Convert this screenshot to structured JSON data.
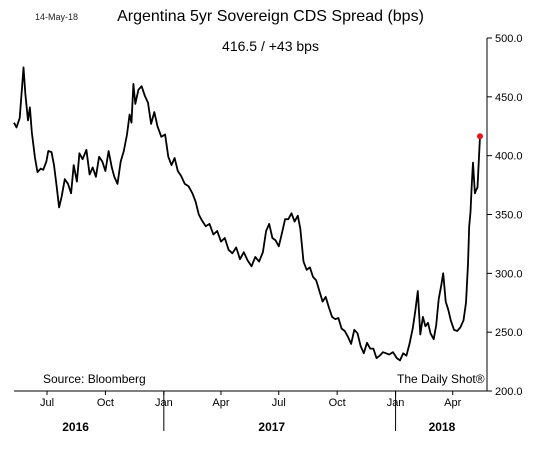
{
  "header": {
    "date": "14-May-18",
    "title": "Argentina 5yr Sovereign CDS Spread (bps)",
    "subtitle": "416.5  /  +43 bps"
  },
  "footer": {
    "source": "Source: Bloomberg",
    "credit": "The Daily Shot®"
  },
  "colors": {
    "line": "#000000",
    "last_point": "#e8161b"
  },
  "chart_data": {
    "type": "line",
    "title": "Argentina 5yr Sovereign CDS Spread (bps)",
    "subtitle": "416.5  /  +43 bps",
    "xlabel": "",
    "ylabel": "",
    "ylim": [
      200,
      500
    ],
    "xlim": [
      "2016-05-10",
      "2018-05-25"
    ],
    "yticks": [
      200,
      250,
      300,
      350,
      400,
      450,
      500
    ],
    "ytick_labels": [
      "200.0",
      "250.0",
      "300.0",
      "350.0",
      "400.0",
      "450.0",
      "500.0"
    ],
    "month_ticks": [
      {
        "label": "Jul",
        "date": "2016-07-01"
      },
      {
        "label": "Oct",
        "date": "2016-10-01"
      },
      {
        "label": "Jan",
        "date": "2017-01-01"
      },
      {
        "label": "Apr",
        "date": "2017-04-01"
      },
      {
        "label": "Jul",
        "date": "2017-07-01"
      },
      {
        "label": "Oct",
        "date": "2017-10-01"
      },
      {
        "label": "Jan",
        "date": "2018-01-01"
      },
      {
        "label": "Apr",
        "date": "2018-04-01"
      }
    ],
    "year_labels": [
      {
        "label": "2016",
        "date": "2016-08-15"
      },
      {
        "label": "2017",
        "date": "2017-06-20"
      },
      {
        "label": "2018",
        "date": "2018-03-15"
      }
    ],
    "year_dividers": [
      "2017-01-01",
      "2018-01-01"
    ],
    "grid": false,
    "legend": "none",
    "series": [
      {
        "points": [
          [
            "2016-05-10",
            428
          ],
          [
            "2016-05-14",
            424
          ],
          [
            "2016-05-19",
            432
          ],
          [
            "2016-05-23",
            461
          ],
          [
            "2016-05-25",
            475
          ],
          [
            "2016-05-28",
            452
          ],
          [
            "2016-06-01",
            430
          ],
          [
            "2016-06-04",
            441
          ],
          [
            "2016-06-07",
            420
          ],
          [
            "2016-06-12",
            398
          ],
          [
            "2016-06-16",
            386
          ],
          [
            "2016-06-21",
            389
          ],
          [
            "2016-06-25",
            388
          ],
          [
            "2016-06-30",
            395
          ],
          [
            "2016-07-03",
            404
          ],
          [
            "2016-07-08",
            403
          ],
          [
            "2016-07-12",
            392
          ],
          [
            "2016-07-16",
            375
          ],
          [
            "2016-07-20",
            356
          ],
          [
            "2016-07-24",
            365
          ],
          [
            "2016-07-29",
            380
          ],
          [
            "2016-08-03",
            376
          ],
          [
            "2016-08-08",
            368
          ],
          [
            "2016-08-12",
            392
          ],
          [
            "2016-08-17",
            378
          ],
          [
            "2016-08-21",
            402
          ],
          [
            "2016-08-26",
            397
          ],
          [
            "2016-09-01",
            405
          ],
          [
            "2016-09-06",
            384
          ],
          [
            "2016-09-11",
            390
          ],
          [
            "2016-09-16",
            382
          ],
          [
            "2016-09-21",
            399
          ],
          [
            "2016-09-26",
            395
          ],
          [
            "2016-10-01",
            387
          ],
          [
            "2016-10-06",
            404
          ],
          [
            "2016-10-11",
            390
          ],
          [
            "2016-10-15",
            382
          ],
          [
            "2016-10-20",
            376
          ],
          [
            "2016-10-25",
            395
          ],
          [
            "2016-10-30",
            404
          ],
          [
            "2016-11-04",
            418
          ],
          [
            "2016-11-08",
            435
          ],
          [
            "2016-11-11",
            428
          ],
          [
            "2016-11-14",
            461
          ],
          [
            "2016-11-17",
            444
          ],
          [
            "2016-11-22",
            456
          ],
          [
            "2016-11-27",
            459
          ],
          [
            "2016-12-02",
            451
          ],
          [
            "2016-12-07",
            445
          ],
          [
            "2016-12-12",
            427
          ],
          [
            "2016-12-17",
            437
          ],
          [
            "2016-12-22",
            425
          ],
          [
            "2016-12-28",
            416
          ],
          [
            "2017-01-03",
            418
          ],
          [
            "2017-01-08",
            399
          ],
          [
            "2017-01-13",
            392
          ],
          [
            "2017-01-18",
            398
          ],
          [
            "2017-01-23",
            387
          ],
          [
            "2017-01-28",
            383
          ],
          [
            "2017-02-03",
            376
          ],
          [
            "2017-02-09",
            374
          ],
          [
            "2017-02-15",
            368
          ],
          [
            "2017-02-20",
            361
          ],
          [
            "2017-02-25",
            350
          ],
          [
            "2017-03-02",
            345
          ],
          [
            "2017-03-08",
            340
          ],
          [
            "2017-03-14",
            342
          ],
          [
            "2017-03-20",
            333
          ],
          [
            "2017-03-26",
            336
          ],
          [
            "2017-04-01",
            327
          ],
          [
            "2017-04-07",
            330
          ],
          [
            "2017-04-13",
            320
          ],
          [
            "2017-04-19",
            317
          ],
          [
            "2017-04-25",
            322
          ],
          [
            "2017-05-01",
            312
          ],
          [
            "2017-05-07",
            318
          ],
          [
            "2017-05-13",
            311
          ],
          [
            "2017-05-19",
            306
          ],
          [
            "2017-05-25",
            314
          ],
          [
            "2017-05-31",
            310
          ],
          [
            "2017-06-06",
            318
          ],
          [
            "2017-06-11",
            336
          ],
          [
            "2017-06-16",
            342
          ],
          [
            "2017-06-21",
            330
          ],
          [
            "2017-06-26",
            328
          ],
          [
            "2017-07-01",
            323
          ],
          [
            "2017-07-06",
            334
          ],
          [
            "2017-07-11",
            346
          ],
          [
            "2017-07-16",
            346
          ],
          [
            "2017-07-21",
            351
          ],
          [
            "2017-07-26",
            344
          ],
          [
            "2017-07-31",
            349
          ],
          [
            "2017-08-04",
            338
          ],
          [
            "2017-08-09",
            310
          ],
          [
            "2017-08-14",
            303
          ],
          [
            "2017-08-19",
            305
          ],
          [
            "2017-08-24",
            297
          ],
          [
            "2017-08-29",
            294
          ],
          [
            "2017-09-03",
            285
          ],
          [
            "2017-09-08",
            276
          ],
          [
            "2017-09-13",
            280
          ],
          [
            "2017-09-18",
            271
          ],
          [
            "2017-09-23",
            263
          ],
          [
            "2017-09-28",
            261
          ],
          [
            "2017-10-03",
            262
          ],
          [
            "2017-10-08",
            253
          ],
          [
            "2017-10-13",
            251
          ],
          [
            "2017-10-18",
            246
          ],
          [
            "2017-10-23",
            240
          ],
          [
            "2017-10-28",
            252
          ],
          [
            "2017-11-02",
            249
          ],
          [
            "2017-11-07",
            238
          ],
          [
            "2017-11-12",
            232
          ],
          [
            "2017-11-17",
            241
          ],
          [
            "2017-11-22",
            236
          ],
          [
            "2017-11-27",
            236
          ],
          [
            "2017-12-02",
            228
          ],
          [
            "2017-12-07",
            230
          ],
          [
            "2017-12-12",
            233
          ],
          [
            "2017-12-17",
            232
          ],
          [
            "2017-12-22",
            231
          ],
          [
            "2017-12-28",
            233
          ],
          [
            "2018-01-03",
            228
          ],
          [
            "2018-01-08",
            226
          ],
          [
            "2018-01-13",
            232
          ],
          [
            "2018-01-18",
            230
          ],
          [
            "2018-01-23",
            240
          ],
          [
            "2018-01-28",
            253
          ],
          [
            "2018-02-01",
            268
          ],
          [
            "2018-02-05",
            285
          ],
          [
            "2018-02-09",
            248
          ],
          [
            "2018-02-13",
            263
          ],
          [
            "2018-02-17",
            255
          ],
          [
            "2018-02-21",
            258
          ],
          [
            "2018-02-25",
            249
          ],
          [
            "2018-03-02",
            244
          ],
          [
            "2018-03-06",
            256
          ],
          [
            "2018-03-10",
            278
          ],
          [
            "2018-03-14",
            290
          ],
          [
            "2018-03-17",
            300
          ],
          [
            "2018-03-21",
            276
          ],
          [
            "2018-03-25",
            269
          ],
          [
            "2018-03-29",
            260
          ],
          [
            "2018-04-03",
            252
          ],
          [
            "2018-04-08",
            251
          ],
          [
            "2018-04-13",
            254
          ],
          [
            "2018-04-18",
            260
          ],
          [
            "2018-04-22",
            275
          ],
          [
            "2018-04-25",
            308
          ],
          [
            "2018-04-27",
            340
          ],
          [
            "2018-04-29",
            352
          ],
          [
            "2018-05-01",
            376
          ],
          [
            "2018-05-03",
            394
          ],
          [
            "2018-05-06",
            368
          ],
          [
            "2018-05-08",
            371
          ],
          [
            "2018-05-10",
            373
          ],
          [
            "2018-05-14",
            416.5
          ]
        ]
      }
    ],
    "annotations": [
      {
        "text": "416.5  /  +43 bps"
      }
    ]
  }
}
